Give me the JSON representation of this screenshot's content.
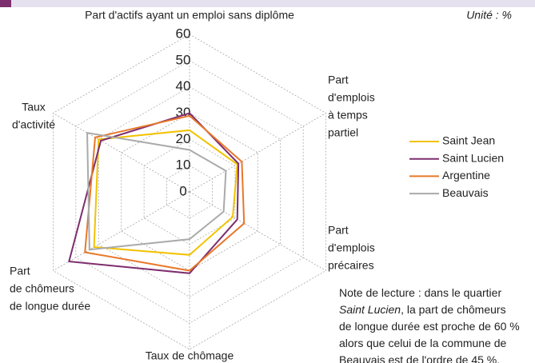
{
  "chart_data": {
    "type": "radar",
    "unit": "Unité : %",
    "axes": [
      [
        "Part d'actifs ayant un emploi sans diplôme"
      ],
      [
        "Part",
        "d'emplois",
        "à temps",
        "partiel"
      ],
      [
        "Part",
        "d'emplois",
        "précaires"
      ],
      [
        "Taux de chômage"
      ],
      [
        "Part",
        "de chômeurs",
        "de longue durée"
      ],
      [
        "Taux",
        "d'activité"
      ]
    ],
    "rlim": [
      0,
      60
    ],
    "rticks": [
      0,
      10,
      20,
      30,
      40,
      50,
      60
    ],
    "grid": true,
    "series": [
      {
        "name": "Saint Jean",
        "color": "#f2c200",
        "values": [
          23.5,
          21,
          19,
          24,
          42,
          40
        ]
      },
      {
        "name": "Saint Lucien",
        "color": "#7d2e6e",
        "values": [
          30,
          21.5,
          21,
          31,
          53,
          39
        ]
      },
      {
        "name": "Argentine",
        "color": "#e8782a",
        "values": [
          29,
          23,
          24,
          30,
          46,
          41.5
        ]
      },
      {
        "name": "Beauvais",
        "color": "#aaaaaa",
        "values": [
          16,
          16,
          15,
          18,
          44,
          45
        ]
      }
    ],
    "note": [
      [
        "Note de lecture : dans le quartier"
      ],
      [
        "Saint Lucien",
        ", la part de chômeurs"
      ],
      [
        "de longue durée est proche de 60 %"
      ],
      [
        "alors que celui de la commune de"
      ],
      [
        "Beauvais est de l'ordre de 45 %."
      ]
    ]
  }
}
